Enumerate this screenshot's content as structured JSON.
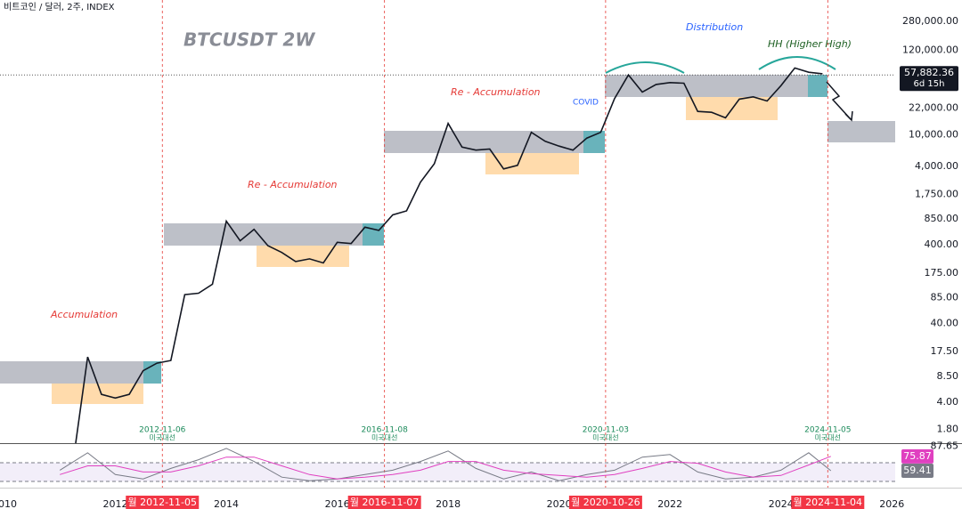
{
  "header": {
    "symbol_info": "비트코인 / 달러, 2주, INDEX"
  },
  "chart_data": [
    {
      "type": "line",
      "title": "BTCUSDT 2W",
      "log_scale": true,
      "grid": false,
      "xlim": [
        2009.92,
        2026.06
      ],
      "ylim": [
        1.2,
        520000
      ],
      "xticks": [
        2010,
        2012,
        2014,
        2016,
        2018,
        2020,
        2022,
        2024,
        2026
      ],
      "yticks": [
        {
          "value": 280000,
          "label": "280,000.00"
        },
        {
          "value": 120000,
          "label": "120,000.00"
        },
        {
          "value": 22000,
          "label": "22,000.00"
        },
        {
          "value": 10000,
          "label": "10,000.00"
        },
        {
          "value": 4000,
          "label": "4,000.00"
        },
        {
          "value": 1750,
          "label": "1,750.00"
        },
        {
          "value": 850,
          "label": "850.00"
        },
        {
          "value": 400,
          "label": "400.00"
        },
        {
          "value": 175,
          "label": "175.00"
        },
        {
          "value": 85,
          "label": "85.00"
        },
        {
          "value": 40,
          "label": "40.00"
        },
        {
          "value": 17.5,
          "label": "17.50"
        },
        {
          "value": 8.5,
          "label": "8.50"
        },
        {
          "value": 4,
          "label": "4.00"
        },
        {
          "value": 1.8,
          "label": "1.80"
        }
      ],
      "x": [
        2011.25,
        2011.5,
        2011.75,
        2012,
        2012.25,
        2012.5,
        2012.75,
        2013,
        2013.25,
        2013.5,
        2013.75,
        2014,
        2014.25,
        2014.5,
        2014.75,
        2015,
        2015.25,
        2015.5,
        2015.75,
        2016,
        2016.25,
        2016.5,
        2016.75,
        2017,
        2017.25,
        2017.5,
        2017.75,
        2018,
        2018.25,
        2018.5,
        2018.75,
        2019,
        2019.25,
        2019.5,
        2019.75,
        2020,
        2020.25,
        2020.5,
        2020.75,
        2021,
        2021.25,
        2021.5,
        2021.75,
        2022,
        2022.25,
        2022.5,
        2022.75,
        2023,
        2023.25,
        2023.5,
        2023.75,
        2024,
        2024.25,
        2024.5,
        2024.75
      ],
      "series": [
        {
          "color": "#131722",
          "values": [
            0.8,
            15,
            5,
            4.5,
            5,
            10,
            12.5,
            13.5,
            93,
            97,
            126,
            800,
            450,
            630,
            390,
            320,
            245,
            265,
            235,
            430,
            415,
            670,
            610,
            960,
            1080,
            2500,
            4300,
            14000,
            7000,
            6400,
            6600,
            3700,
            4100,
            10800,
            8300,
            7200,
            6400,
            9100,
            10800,
            29000,
            58000,
            35000,
            43800,
            46300,
            45500,
            19900,
            19400,
            16500,
            28500,
            30500,
            27000,
            42300,
            71000,
            62700,
            60000
          ]
        }
      ],
      "last_price": {
        "value": 57882.36,
        "label": "57,882.36",
        "countdown": "6d 15h"
      },
      "annotations": [
        "Accumulation",
        "Re - Accumulation",
        "Re - Accumulation",
        "COVID",
        "Distribution",
        "HH (Higher High)"
      ],
      "events": [
        {
          "date": "2012-11-06",
          "label": "미국대선",
          "tag": "월 2012-11-05"
        },
        {
          "date": "2016-11-08",
          "label": "미국대선",
          "tag": "월 2016-11-07"
        },
        {
          "date": "2020-11-03",
          "label": "미국대선",
          "tag": "월 2020-10-26"
        },
        {
          "date": "2024-11-05",
          "label": "미국대선",
          "tag": "월 2024-11-04"
        }
      ]
    },
    {
      "type": "line",
      "xlim": [
        2009.92,
        2026.06
      ],
      "ylim": [
        40,
        90
      ],
      "yticks": [
        87.65
      ],
      "x": [
        2011,
        2011.5,
        2012,
        2012.5,
        2013,
        2013.5,
        2014,
        2014.5,
        2015,
        2015.5,
        2016,
        2016.5,
        2017,
        2017.5,
        2018,
        2018.5,
        2019,
        2019.5,
        2020,
        2020.5,
        2021,
        2021.5,
        2022,
        2022.5,
        2023,
        2023.5,
        2024,
        2024.5,
        2024.9
      ],
      "series": [
        {
          "color": "#787b86",
          "values": [
            60,
            80,
            55,
            50,
            62,
            72,
            85,
            70,
            52,
            48,
            50,
            55,
            60,
            70,
            82,
            62,
            50,
            58,
            48,
            55,
            60,
            75,
            78,
            58,
            50,
            52,
            60,
            80,
            59.41
          ]
        },
        {
          "color": "#e040c0",
          "values": [
            55,
            65,
            65,
            58,
            58,
            65,
            75,
            75,
            65,
            55,
            50,
            52,
            55,
            60,
            70,
            70,
            60,
            56,
            54,
            52,
            55,
            62,
            70,
            68,
            58,
            52,
            54,
            66,
            75.87
          ]
        }
      ]
    }
  ]
}
